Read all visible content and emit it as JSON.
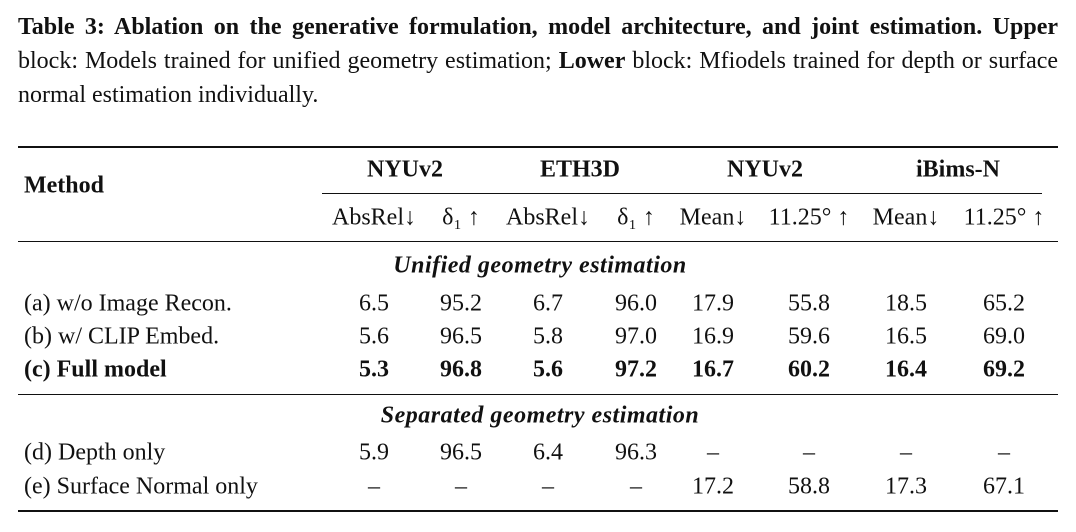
{
  "caption": {
    "title": "Table 3: Ablation on the generative formulation, model architecture, and joint estimation.",
    "upper": "Upper",
    "upper_text": "block: Models trained for unified geometry estimation;",
    "lower": "Lower",
    "lower_text": "block: Mfiodels trained for depth or surface normal estimation individually."
  },
  "table": {
    "method_header": "Method",
    "groups": [
      "NYUv2",
      "ETH3D",
      "NYUv2",
      "iBims-N"
    ],
    "subheaders": [
      "AbsRel↓",
      "δ₁ ↑",
      "AbsRel↓",
      "δ₁ ↑",
      "Mean↓",
      "11.25° ↑",
      "Mean↓",
      "11.25° ↑"
    ],
    "sections": [
      {
        "title": "Unified geometry estimation",
        "rows": [
          {
            "method": "(a) w/o Image Recon.",
            "bold": false,
            "cells": [
              "6.5",
              "95.2",
              "6.7",
              "96.0",
              "17.9",
              "55.8",
              "18.5",
              "65.2"
            ]
          },
          {
            "method": "(b) w/ CLIP Embed.",
            "bold": false,
            "cells": [
              "5.6",
              "96.5",
              "5.8",
              "97.0",
              "16.9",
              "59.6",
              "16.5",
              "69.0"
            ]
          },
          {
            "method": "(c) Full model",
            "bold": true,
            "cells": [
              "5.3",
              "96.8",
              "5.6",
              "97.2",
              "16.7",
              "60.2",
              "16.4",
              "69.2"
            ]
          }
        ]
      },
      {
        "title": "Separated geometry estimation",
        "rows": [
          {
            "method": "(d) Depth only",
            "bold": false,
            "cells": [
              "5.9",
              "96.5",
              "6.4",
              "96.3",
              "–",
              "–",
              "–",
              "–"
            ]
          },
          {
            "method": "(e) Surface Normal only",
            "bold": false,
            "cells": [
              "–",
              "–",
              "–",
              "–",
              "17.2",
              "58.8",
              "17.3",
              "67.1"
            ]
          }
        ]
      }
    ]
  }
}
